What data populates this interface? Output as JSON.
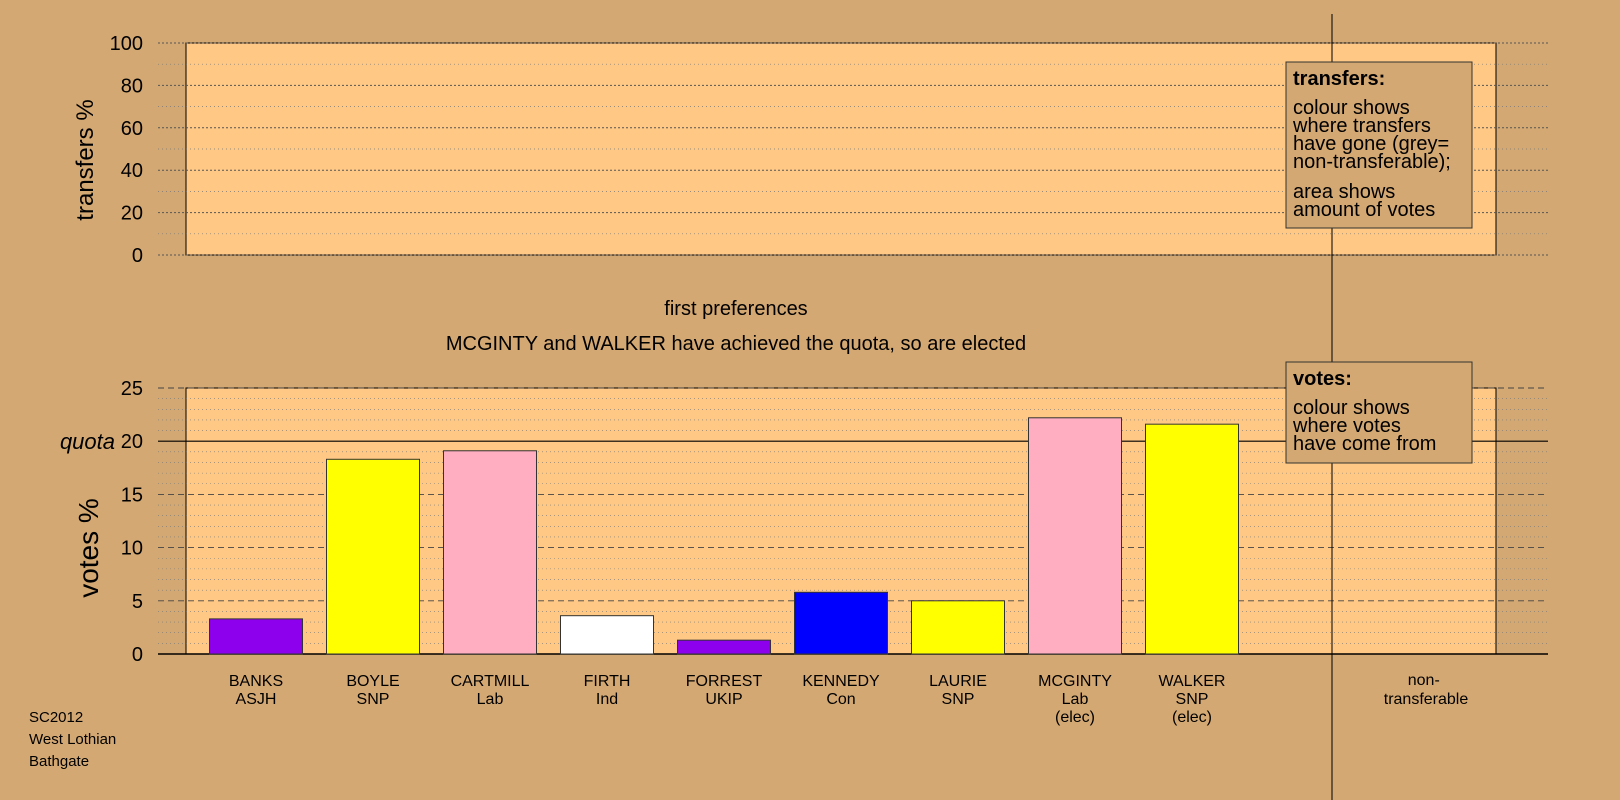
{
  "colors": {
    "background": "#d4a872",
    "plot_area": "#ffc885",
    "legend_box": "#d4a872"
  },
  "header": {
    "stage": "first preferences",
    "status": "MCGINTY and WALKER have achieved the quota, so are elected"
  },
  "footer": [
    "SC2012",
    "West Lothian",
    "Bathgate"
  ],
  "chart_data": [
    {
      "type": "bar",
      "ylabel": "transfers %",
      "ylim": [
        0,
        100
      ],
      "ticks": [
        0,
        20,
        40,
        60,
        80,
        100
      ],
      "values": [],
      "legend": {
        "title": "transfers:",
        "lines": [
          "colour shows",
          "where transfers",
          "have gone (grey=",
          "non-transferable);"
        ],
        "lines2": [
          "area shows",
          "amount of votes"
        ],
        "position": "top-right"
      }
    },
    {
      "type": "bar",
      "ylabel": "votes %",
      "ylim": [
        0,
        25
      ],
      "ticks": [
        0,
        5,
        10,
        15,
        20,
        25
      ],
      "quota": 20,
      "quota_label": "quota",
      "categories": [
        {
          "name": "BANKS",
          "party": "ASJH",
          "note": ""
        },
        {
          "name": "BOYLE",
          "party": "SNP",
          "note": ""
        },
        {
          "name": "CARTMILL",
          "party": "Lab",
          "note": ""
        },
        {
          "name": "FIRTH",
          "party": "Ind",
          "note": ""
        },
        {
          "name": "FORREST",
          "party": "UKIP",
          "note": ""
        },
        {
          "name": "KENNEDY",
          "party": "Con",
          "note": ""
        },
        {
          "name": "LAURIE",
          "party": "SNP",
          "note": ""
        },
        {
          "name": "MCGINTY",
          "party": "Lab",
          "note": "(elec)"
        },
        {
          "name": "WALKER",
          "party": "SNP",
          "note": "(elec)"
        }
      ],
      "values": [
        3.3,
        18.3,
        19.1,
        3.6,
        1.3,
        5.8,
        5.0,
        22.2,
        21.6
      ],
      "bar_colors": [
        "#8c00ee",
        "#ffff00",
        "#ffadc1",
        "#ffffff",
        "#8c00ee",
        "#0000ff",
        "#ffff00",
        "#ffadc1",
        "#ffff00"
      ],
      "extra_category": [
        "non-",
        "transferable"
      ],
      "legend": {
        "title": "votes:",
        "lines": [
          "colour shows",
          "where votes",
          "have come from"
        ],
        "position": "top-right"
      }
    }
  ]
}
